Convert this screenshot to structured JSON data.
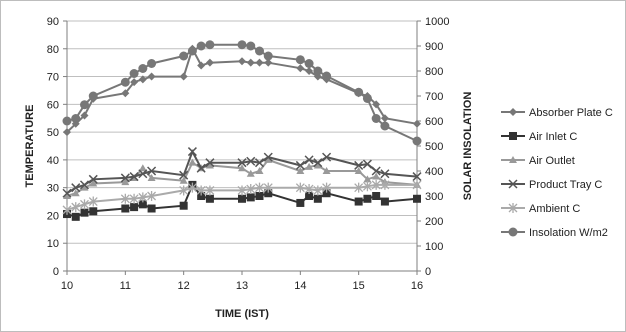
{
  "chart_data": {
    "type": "line",
    "xlabel": "TIME (IST)",
    "ylabel": "TEMPERATURE",
    "y2label": "SOLAR INSOLATION",
    "xlim": [
      10,
      16
    ],
    "ylim": [
      0,
      90
    ],
    "y2lim": [
      0,
      1000
    ],
    "xticks": [
      "10",
      "11",
      "12",
      "13",
      "14",
      "15",
      "16"
    ],
    "yticks": [
      "0",
      "10",
      "20",
      "30",
      "40",
      "50",
      "60",
      "70",
      "80",
      "90"
    ],
    "y2ticks": [
      "0",
      "100",
      "200",
      "300",
      "400",
      "500",
      "600",
      "700",
      "800",
      "900",
      "1000"
    ],
    "grid": "horizontal",
    "legend_position": "right",
    "series": [
      {
        "name": "Absorber Plate C",
        "axis": "left",
        "color": "#777777",
        "marker": "diamond",
        "x": [
          10,
          10.15,
          10.3,
          10.45,
          11,
          11.15,
          11.3,
          11.45,
          12,
          12.15,
          12.3,
          12.45,
          13,
          13.15,
          13.3,
          13.45,
          14,
          14.15,
          14.3,
          14.45,
          15,
          15.15,
          15.3,
          15.45,
          16
        ],
        "y": [
          50,
          53,
          56,
          62,
          64,
          68,
          69,
          70,
          70,
          80,
          74,
          75,
          75.5,
          75,
          75,
          75,
          73,
          72,
          70,
          69,
          64,
          63,
          60,
          55,
          53
        ]
      },
      {
        "name": "Air Inlet C",
        "axis": "left",
        "color": "#333333",
        "marker": "square",
        "x": [
          10,
          10.15,
          10.3,
          10.45,
          11,
          11.15,
          11.3,
          11.45,
          12,
          12.15,
          12.3,
          12.45,
          13,
          13.15,
          13.3,
          13.45,
          14,
          14.15,
          14.3,
          14.45,
          15,
          15.15,
          15.3,
          15.45,
          16
        ],
        "y": [
          20.5,
          19.5,
          21,
          21.5,
          22.5,
          23,
          24,
          22.5,
          23.5,
          31,
          27,
          26,
          26,
          26.5,
          27,
          28,
          24.5,
          27,
          26,
          28,
          25,
          26,
          27,
          25,
          26
        ]
      },
      {
        "name": "Air Outlet",
        "axis": "left",
        "color": "#999999",
        "marker": "triangle",
        "x": [
          10,
          10.15,
          10.3,
          10.45,
          11,
          11.15,
          11.3,
          11.45,
          12,
          12.15,
          12.3,
          12.45,
          13,
          13.15,
          13.3,
          13.45,
          14,
          14.15,
          14.3,
          14.45,
          15,
          15.15,
          15.3,
          15.45,
          16
        ],
        "y": [
          27,
          28,
          30,
          31.5,
          32,
          33.5,
          37,
          33.5,
          32.5,
          39,
          37,
          38,
          37,
          35,
          36,
          40,
          36,
          37.5,
          38,
          36,
          36,
          33,
          34,
          32,
          31
        ]
      },
      {
        "name": "Product Tray C",
        "axis": "left",
        "color": "#555555",
        "marker": "x",
        "x": [
          10,
          10.15,
          10.3,
          10.45,
          11,
          11.15,
          11.3,
          11.45,
          12,
          12.15,
          12.3,
          12.45,
          13,
          13.15,
          13.3,
          13.45,
          14,
          14.15,
          14.3,
          14.45,
          15,
          15.15,
          15.3,
          15.45,
          16
        ],
        "y": [
          28,
          30,
          31,
          33,
          33.5,
          34,
          35,
          36,
          34.5,
          43,
          37,
          39,
          39,
          39.5,
          39,
          41,
          38,
          40,
          39,
          41,
          38,
          38.5,
          36,
          35,
          34
        ]
      },
      {
        "name": "Ambient C",
        "axis": "left",
        "color": "#aaaaaa",
        "marker": "star",
        "x": [
          10,
          10.15,
          10.3,
          10.45,
          11,
          11.15,
          11.3,
          11.45,
          12,
          12.15,
          12.3,
          12.45,
          13,
          13.15,
          13.3,
          13.45,
          14,
          14.15,
          14.3,
          14.45,
          15,
          15.15,
          15.3,
          15.45,
          16
        ],
        "y": [
          22,
          23,
          24,
          25,
          26,
          26,
          26.5,
          27,
          29,
          30,
          29,
          29,
          29,
          29.5,
          30,
          30,
          30,
          29.5,
          29,
          30,
          30,
          30.5,
          31,
          31,
          31
        ]
      },
      {
        "name": "Insolation W/m2",
        "axis": "right",
        "color": "#777777",
        "marker": "circle",
        "x": [
          10,
          10.15,
          10.3,
          10.45,
          11,
          11.15,
          11.3,
          11.45,
          12,
          12.15,
          12.3,
          12.45,
          13,
          13.15,
          13.3,
          13.45,
          14,
          14.15,
          14.3,
          14.45,
          15,
          15.15,
          15.3,
          15.45,
          16
        ],
        "y": [
          600,
          610,
          665,
          700,
          755,
          790,
          810,
          830,
          860,
          880,
          900,
          905,
          905,
          900,
          880,
          860,
          845,
          830,
          800,
          780,
          715,
          690,
          610,
          580,
          520
        ]
      }
    ]
  }
}
